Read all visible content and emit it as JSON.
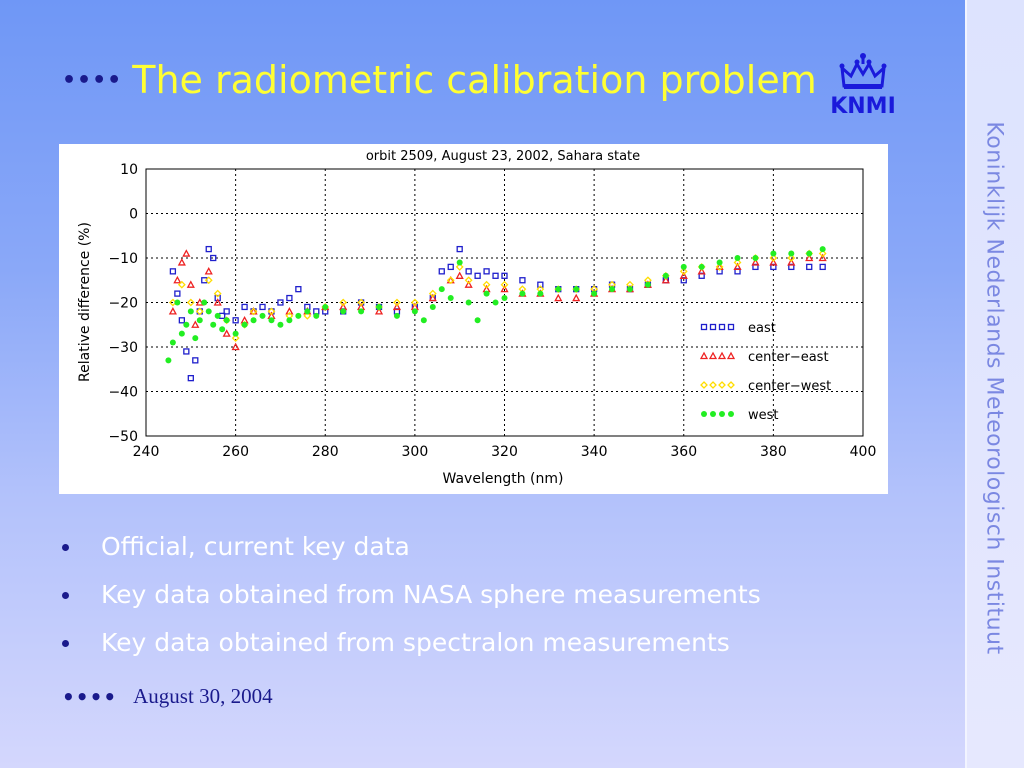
{
  "slide": {
    "title": "The radiometric calibration problem",
    "title_dots": "••••",
    "side_text": "Koninklijk Nederlands Meteorologisch Instituut",
    "logo_text": "KNMI",
    "bullets": [
      "Official, current key data",
      "Key data obtained from NASA sphere measurements",
      "Key data obtained from spectralon measurements"
    ],
    "footer_dots": "••••",
    "date": "August 30, 2004",
    "colors": {
      "title": "#ffff33",
      "bullet_text": "#ffffff",
      "accent": "#1a1a8c",
      "side_text": "#7b88e2",
      "logo": "#1a1adb"
    }
  },
  "chart_data": {
    "type": "scatter",
    "title": "orbit 2509, August 23, 2002, Sahara state",
    "xlabel": "Wavelength (nm)",
    "ylabel": "Relative difference (%)",
    "xlim": [
      240,
      400
    ],
    "ylim": [
      -50,
      10
    ],
    "xticks": [
      240,
      260,
      280,
      300,
      320,
      340,
      360,
      380,
      400
    ],
    "yticks": [
      10,
      0,
      -10,
      -20,
      -30,
      -40,
      -50
    ],
    "grid": true,
    "legend_position": "lower-right",
    "series": [
      {
        "name": "east",
        "marker": "square",
        "color": "#1f1fcc",
        "points": [
          [
            246,
            -13
          ],
          [
            247,
            -18
          ],
          [
            248,
            -24
          ],
          [
            249,
            -31
          ],
          [
            250,
            -37
          ],
          [
            251,
            -33
          ],
          [
            252,
            -22
          ],
          [
            253,
            -15
          ],
          [
            254,
            -8
          ],
          [
            255,
            -10
          ],
          [
            256,
            -19
          ],
          [
            257,
            -23
          ],
          [
            258,
            -22
          ],
          [
            260,
            -24
          ],
          [
            262,
            -21
          ],
          [
            264,
            -22
          ],
          [
            266,
            -21
          ],
          [
            268,
            -22
          ],
          [
            270,
            -20
          ],
          [
            272,
            -19
          ],
          [
            274,
            -17
          ],
          [
            276,
            -21
          ],
          [
            278,
            -22
          ],
          [
            280,
            -22
          ],
          [
            284,
            -22
          ],
          [
            288,
            -20
          ],
          [
            292,
            -21
          ],
          [
            296,
            -22
          ],
          [
            300,
            -21
          ],
          [
            304,
            -19
          ],
          [
            306,
            -13
          ],
          [
            308,
            -12
          ],
          [
            310,
            -8
          ],
          [
            312,
            -13
          ],
          [
            314,
            -14
          ],
          [
            316,
            -13
          ],
          [
            318,
            -14
          ],
          [
            320,
            -14
          ],
          [
            324,
            -15
          ],
          [
            328,
            -16
          ],
          [
            332,
            -17
          ],
          [
            336,
            -17
          ],
          [
            340,
            -17
          ],
          [
            344,
            -16
          ],
          [
            348,
            -17
          ],
          [
            352,
            -16
          ],
          [
            356,
            -15
          ],
          [
            360,
            -15
          ],
          [
            364,
            -14
          ],
          [
            368,
            -13
          ],
          [
            372,
            -13
          ],
          [
            376,
            -12
          ],
          [
            380,
            -12
          ],
          [
            384,
            -12
          ],
          [
            388,
            -12
          ],
          [
            391,
            -12
          ]
        ]
      },
      {
        "name": "center−east",
        "marker": "triangle",
        "color": "#ee2222",
        "points": [
          [
            246,
            -22
          ],
          [
            247,
            -15
          ],
          [
            248,
            -11
          ],
          [
            249,
            -9
          ],
          [
            250,
            -16
          ],
          [
            251,
            -25
          ],
          [
            252,
            -20
          ],
          [
            254,
            -13
          ],
          [
            256,
            -20
          ],
          [
            258,
            -27
          ],
          [
            260,
            -30
          ],
          [
            262,
            -24
          ],
          [
            264,
            -22
          ],
          [
            268,
            -23
          ],
          [
            272,
            -22
          ],
          [
            276,
            -22
          ],
          [
            280,
            -21
          ],
          [
            284,
            -21
          ],
          [
            288,
            -21
          ],
          [
            292,
            -22
          ],
          [
            296,
            -21
          ],
          [
            300,
            -21
          ],
          [
            304,
            -19
          ],
          [
            308,
            -15
          ],
          [
            310,
            -14
          ],
          [
            312,
            -16
          ],
          [
            316,
            -17
          ],
          [
            320,
            -17
          ],
          [
            324,
            -18
          ],
          [
            328,
            -18
          ],
          [
            332,
            -19
          ],
          [
            336,
            -19
          ],
          [
            340,
            -18
          ],
          [
            344,
            -17
          ],
          [
            348,
            -17
          ],
          [
            352,
            -16
          ],
          [
            356,
            -15
          ],
          [
            360,
            -14
          ],
          [
            364,
            -13
          ],
          [
            368,
            -12
          ],
          [
            372,
            -12
          ],
          [
            376,
            -11
          ],
          [
            380,
            -11
          ],
          [
            384,
            -11
          ],
          [
            388,
            -10
          ],
          [
            391,
            -10
          ]
        ]
      },
      {
        "name": "center−west",
        "marker": "diamond",
        "color": "#ffdd00",
        "points": [
          [
            246,
            -20
          ],
          [
            248,
            -16
          ],
          [
            250,
            -20
          ],
          [
            252,
            -22
          ],
          [
            254,
            -15
          ],
          [
            256,
            -18
          ],
          [
            258,
            -24
          ],
          [
            260,
            -28
          ],
          [
            262,
            -25
          ],
          [
            264,
            -22
          ],
          [
            268,
            -22
          ],
          [
            272,
            -23
          ],
          [
            276,
            -23
          ],
          [
            280,
            -21
          ],
          [
            284,
            -20
          ],
          [
            288,
            -20
          ],
          [
            292,
            -21
          ],
          [
            296,
            -20
          ],
          [
            300,
            -20
          ],
          [
            304,
            -18
          ],
          [
            308,
            -15
          ],
          [
            310,
            -12
          ],
          [
            312,
            -15
          ],
          [
            316,
            -16
          ],
          [
            320,
            -16
          ],
          [
            324,
            -17
          ],
          [
            328,
            -17
          ],
          [
            332,
            -17
          ],
          [
            336,
            -17
          ],
          [
            340,
            -17
          ],
          [
            344,
            -16
          ],
          [
            348,
            -16
          ],
          [
            352,
            -15
          ],
          [
            356,
            -14
          ],
          [
            360,
            -13
          ],
          [
            364,
            -12
          ],
          [
            368,
            -12
          ],
          [
            372,
            -11
          ],
          [
            376,
            -10
          ],
          [
            380,
            -10
          ],
          [
            384,
            -10
          ],
          [
            388,
            -9
          ],
          [
            391,
            -9
          ]
        ]
      },
      {
        "name": "west",
        "marker": "circle",
        "color": "#22ee22",
        "points": [
          [
            245,
            -33
          ],
          [
            246,
            -29
          ],
          [
            247,
            -20
          ],
          [
            248,
            -27
          ],
          [
            249,
            -25
          ],
          [
            250,
            -22
          ],
          [
            251,
            -28
          ],
          [
            252,
            -24
          ],
          [
            253,
            -20
          ],
          [
            254,
            -22
          ],
          [
            255,
            -25
          ],
          [
            256,
            -23
          ],
          [
            257,
            -26
          ],
          [
            258,
            -24
          ],
          [
            260,
            -27
          ],
          [
            262,
            -25
          ],
          [
            264,
            -24
          ],
          [
            266,
            -23
          ],
          [
            268,
            -24
          ],
          [
            270,
            -25
          ],
          [
            272,
            -24
          ],
          [
            274,
            -23
          ],
          [
            276,
            -22
          ],
          [
            278,
            -23
          ],
          [
            280,
            -21
          ],
          [
            284,
            -22
          ],
          [
            288,
            -22
          ],
          [
            292,
            -21
          ],
          [
            296,
            -23
          ],
          [
            300,
            -22
          ],
          [
            302,
            -24
          ],
          [
            304,
            -21
          ],
          [
            306,
            -17
          ],
          [
            308,
            -19
          ],
          [
            310,
            -11
          ],
          [
            312,
            -20
          ],
          [
            314,
            -24
          ],
          [
            316,
            -18
          ],
          [
            318,
            -20
          ],
          [
            320,
            -19
          ],
          [
            324,
            -18
          ],
          [
            328,
            -18
          ],
          [
            332,
            -17
          ],
          [
            336,
            -17
          ],
          [
            340,
            -18
          ],
          [
            344,
            -17
          ],
          [
            348,
            -17
          ],
          [
            352,
            -16
          ],
          [
            356,
            -14
          ],
          [
            360,
            -12
          ],
          [
            364,
            -12
          ],
          [
            368,
            -11
          ],
          [
            372,
            -10
          ],
          [
            376,
            -10
          ],
          [
            380,
            -9
          ],
          [
            384,
            -9
          ],
          [
            388,
            -9
          ],
          [
            391,
            -8
          ]
        ]
      }
    ]
  }
}
